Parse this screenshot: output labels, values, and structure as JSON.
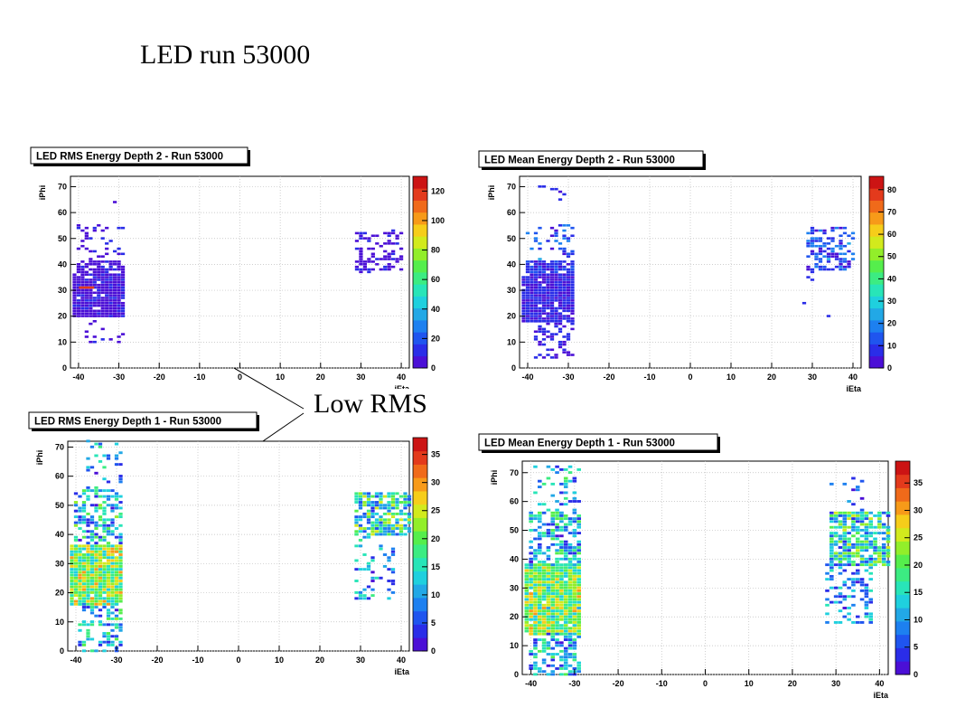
{
  "page": {
    "title": "LED run 53000",
    "annotation": "Low RMS"
  },
  "palette": [
    "#4b0fd6",
    "#2a2de8",
    "#1f55ef",
    "#1d80f0",
    "#22a8e6",
    "#1fd0de",
    "#28e5b8",
    "#3cec82",
    "#55ee4c",
    "#92ee2a",
    "#d2ea1d",
    "#f6cd1a",
    "#f79a19",
    "#f06a1a",
    "#e33a1c",
    "#cc1414"
  ],
  "chart_data": [
    {
      "type": "heatmap",
      "id": "rms-depth2",
      "title": "LED RMS Energy Depth 2 - Run 53000",
      "xlabel": "iEta",
      "ylabel": "iPhi",
      "xlim": [
        -42,
        42
      ],
      "ylim": [
        0,
        74
      ],
      "zlim": [
        0,
        130
      ],
      "grid": true,
      "xticks": [
        -40,
        -30,
        -20,
        -10,
        0,
        10,
        20,
        30,
        40
      ],
      "yticks": [
        0,
        10,
        20,
        30,
        40,
        50,
        60,
        70
      ],
      "zticks": [
        0,
        20,
        40,
        60,
        80,
        100,
        120
      ],
      "clusters": [
        {
          "xr": [
            -41,
            -29
          ],
          "yr": [
            20,
            36
          ],
          "d": 0.95,
          "v": [
            2,
            10
          ],
          "hot": [
            [
              -38,
              31,
              120
            ]
          ]
        },
        {
          "xr": [
            -40,
            -29
          ],
          "yr": [
            37,
            41
          ],
          "d": 0.8,
          "v": [
            2,
            10
          ]
        },
        {
          "xr": [
            -40,
            -29
          ],
          "yr": [
            42,
            55
          ],
          "d": 0.2,
          "v": [
            2,
            10
          ]
        },
        {
          "xr": [
            -38,
            -29
          ],
          "yr": [
            10,
            20
          ],
          "d": 0.2,
          "v": [
            2,
            10
          ]
        },
        {
          "xr": [
            -38,
            -30
          ],
          "yr": [
            60,
            68
          ],
          "d": 0.05,
          "v": [
            2,
            10
          ]
        },
        {
          "xr": [
            29,
            40
          ],
          "yr": [
            37,
            53
          ],
          "d": 0.4,
          "v": [
            2,
            10
          ]
        }
      ]
    },
    {
      "type": "heatmap",
      "id": "mean-depth2",
      "title": "LED Mean Energy Depth 2 - Run 53000",
      "xlabel": "iEta",
      "ylabel": "iPhi",
      "xlim": [
        -42,
        42
      ],
      "ylim": [
        0,
        74
      ],
      "zlim": [
        0,
        86
      ],
      "grid": true,
      "xticks": [
        -40,
        -30,
        -20,
        -10,
        0,
        10,
        20,
        30,
        40
      ],
      "yticks": [
        0,
        10,
        20,
        30,
        40,
        50,
        60,
        70
      ],
      "zticks": [
        0,
        10,
        20,
        30,
        40,
        50,
        60,
        70,
        80
      ],
      "clusters": [
        {
          "xr": [
            -41,
            -29
          ],
          "yr": [
            18,
            36
          ],
          "d": 0.95,
          "v": [
            2,
            10
          ]
        },
        {
          "xr": [
            -40,
            -29
          ],
          "yr": [
            37,
            41
          ],
          "d": 0.85,
          "v": [
            2,
            14
          ]
        },
        {
          "xr": [
            -40,
            -29
          ],
          "yr": [
            42,
            55
          ],
          "d": 0.25,
          "v": [
            2,
            22
          ]
        },
        {
          "xr": [
            -38,
            -29
          ],
          "yr": [
            4,
            18
          ],
          "d": 0.3,
          "v": [
            2,
            10
          ]
        },
        {
          "xr": [
            -37,
            -31
          ],
          "yr": [
            60,
            70
          ],
          "d": 0.08,
          "v": [
            2,
            10
          ]
        },
        {
          "xr": [
            29,
            40
          ],
          "yr": [
            38,
            54
          ],
          "d": 0.45,
          "v": [
            2,
            22
          ]
        },
        {
          "xr": [
            28,
            34
          ],
          "yr": [
            20,
            37
          ],
          "d": 0.08,
          "v": [
            2,
            10
          ]
        }
      ]
    },
    {
      "type": "heatmap",
      "id": "rms-depth1",
      "title": "LED RMS Energy Depth 1 - Run 53000",
      "xlabel": "iEta",
      "ylabel": "iPhi",
      "xlim": [
        -42,
        42
      ],
      "ylim": [
        0,
        72
      ],
      "zlim": [
        0,
        38
      ],
      "grid": true,
      "xticks": [
        -40,
        -30,
        -20,
        -10,
        0,
        10,
        20,
        30,
        40
      ],
      "yticks": [
        0,
        10,
        20,
        30,
        40,
        50,
        60,
        70
      ],
      "zticks": [
        0,
        5,
        10,
        15,
        20,
        25,
        30,
        35
      ],
      "clusters": [
        {
          "xr": [
            -41,
            -29
          ],
          "yr": [
            16,
            36
          ],
          "d": 0.97,
          "v": [
            12,
            30
          ]
        },
        {
          "xr": [
            -40,
            -29
          ],
          "yr": [
            37,
            55
          ],
          "d": 0.55,
          "v": [
            2,
            22
          ]
        },
        {
          "xr": [
            -39,
            -29
          ],
          "yr": [
            0,
            16
          ],
          "d": 0.4,
          "v": [
            2,
            22
          ]
        },
        {
          "xr": [
            -37,
            -29
          ],
          "yr": [
            56,
            72
          ],
          "d": 0.2,
          "v": [
            2,
            18
          ]
        },
        {
          "xr": [
            29,
            42
          ],
          "yr": [
            40,
            54
          ],
          "d": 0.75,
          "v": [
            4,
            26
          ]
        },
        {
          "xr": [
            29,
            38
          ],
          "yr": [
            18,
            40
          ],
          "d": 0.2,
          "v": [
            2,
            18
          ]
        }
      ]
    },
    {
      "type": "heatmap",
      "id": "mean-depth1",
      "title": "LED Mean Energy Depth 1 - Run 53000",
      "xlabel": "iEta",
      "ylabel": "iPhi",
      "xlim": [
        -42,
        42
      ],
      "ylim": [
        0,
        74
      ],
      "zlim": [
        0,
        39
      ],
      "grid": true,
      "xticks": [
        -40,
        -30,
        -20,
        -10,
        0,
        10,
        20,
        30,
        40
      ],
      "yticks": [
        0,
        10,
        20,
        30,
        40,
        50,
        60,
        70
      ],
      "zticks": [
        0,
        5,
        10,
        15,
        20,
        25,
        30,
        35
      ],
      "clusters": [
        {
          "xr": [
            -41,
            -29
          ],
          "yr": [
            14,
            38
          ],
          "d": 0.97,
          "v": [
            12,
            30
          ]
        },
        {
          "xr": [
            -40,
            -29
          ],
          "yr": [
            38,
            56
          ],
          "d": 0.6,
          "v": [
            2,
            22
          ]
        },
        {
          "xr": [
            -40,
            -29
          ],
          "yr": [
            0,
            14
          ],
          "d": 0.55,
          "v": [
            2,
            20
          ]
        },
        {
          "xr": [
            -39,
            -29
          ],
          "yr": [
            56,
            72
          ],
          "d": 0.3,
          "v": [
            2,
            20
          ]
        },
        {
          "xr": [
            29,
            42
          ],
          "yr": [
            38,
            56
          ],
          "d": 0.75,
          "v": [
            4,
            26
          ]
        },
        {
          "xr": [
            28,
            38
          ],
          "yr": [
            18,
            38
          ],
          "d": 0.3,
          "v": [
            2,
            16
          ]
        },
        {
          "xr": [
            28,
            36
          ],
          "yr": [
            56,
            68
          ],
          "d": 0.1,
          "v": [
            2,
            10
          ]
        }
      ]
    }
  ]
}
